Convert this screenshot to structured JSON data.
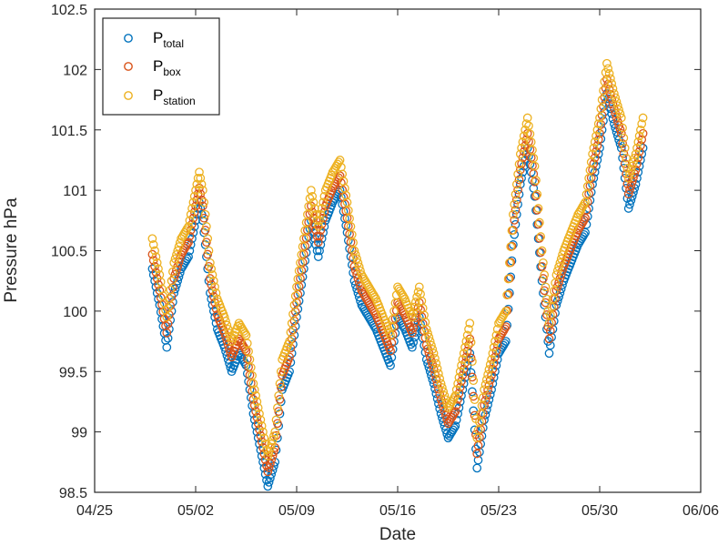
{
  "chart_data": {
    "type": "scatter",
    "title": "",
    "xlabel": "Date",
    "ylabel": "Pressure hPa",
    "x_range": [
      "04/25",
      "06/06"
    ],
    "ylim": [
      98.5,
      102.5
    ],
    "x_ticks": [
      "04/25",
      "05/02",
      "05/09",
      "05/16",
      "05/23",
      "05/30",
      "06/06"
    ],
    "y_ticks": [
      "98.5",
      "99",
      "99.5",
      "100",
      "100.5",
      "101",
      "101.5",
      "102",
      "102.5"
    ],
    "grid": false,
    "legend_position": "top-left",
    "marker": "open-circle",
    "base_series": {
      "name": "P_station",
      "points": [
        [
          "04/29 00:00",
          100.6
        ],
        [
          "04/29 12:00",
          100.3
        ],
        [
          "04/30 00:00",
          99.95
        ],
        [
          "04/30 12:00",
          100.4
        ],
        [
          "05/01 00:00",
          100.6
        ],
        [
          "05/01 12:00",
          100.7
        ],
        [
          "05/02 00:00",
          101.0
        ],
        [
          "05/02 06:00",
          101.15
        ],
        [
          "05/02 12:00",
          101.0
        ],
        [
          "05/03 00:00",
          100.4
        ],
        [
          "05/03 12:00",
          100.1
        ],
        [
          "05/04 00:00",
          99.95
        ],
        [
          "05/04 12:00",
          99.75
        ],
        [
          "05/05 00:00",
          99.9
        ],
        [
          "05/05 12:00",
          99.8
        ],
        [
          "05/06 00:00",
          99.4
        ],
        [
          "05/06 12:00",
          99.1
        ],
        [
          "05/07 00:00",
          98.8
        ],
        [
          "05/07 12:00",
          99.0
        ],
        [
          "05/08 00:00",
          99.6
        ],
        [
          "05/08 12:00",
          99.75
        ],
        [
          "05/09 00:00",
          100.2
        ],
        [
          "05/09 12:00",
          100.6
        ],
        [
          "05/10 00:00",
          101.0
        ],
        [
          "05/10 12:00",
          100.7
        ],
        [
          "05/11 00:00",
          101.0
        ],
        [
          "05/11 12:00",
          101.15
        ],
        [
          "05/12 00:00",
          101.25
        ],
        [
          "05/12 12:00",
          100.9
        ],
        [
          "05/13 00:00",
          100.5
        ],
        [
          "05/13 12:00",
          100.3
        ],
        [
          "05/14 00:00",
          100.2
        ],
        [
          "05/14 12:00",
          100.1
        ],
        [
          "05/15 00:00",
          99.95
        ],
        [
          "05/15 12:00",
          99.8
        ],
        [
          "05/16 00:00",
          100.2
        ],
        [
          "05/16 12:00",
          100.1
        ],
        [
          "05/17 00:00",
          99.95
        ],
        [
          "05/17 12:00",
          100.2
        ],
        [
          "05/18 00:00",
          99.85
        ],
        [
          "05/18 12:00",
          99.65
        ],
        [
          "05/19 00:00",
          99.4
        ],
        [
          "05/19 12:00",
          99.2
        ],
        [
          "05/20 00:00",
          99.3
        ],
        [
          "05/20 12:00",
          99.6
        ],
        [
          "05/21 00:00",
          99.9
        ],
        [
          "05/21 12:00",
          98.95
        ],
        [
          "05/22 00:00",
          99.35
        ],
        [
          "05/22 12:00",
          99.6
        ],
        [
          "05/23 00:00",
          99.9
        ],
        [
          "05/23 12:00",
          100.0
        ],
        [
          "05/24 00:00",
          100.8
        ],
        [
          "05/24 12:00",
          101.3
        ],
        [
          "05/25 00:00",
          101.6
        ],
        [
          "05/25 12:00",
          101.2
        ],
        [
          "05/26 00:00",
          100.5
        ],
        [
          "05/26 12:00",
          99.9
        ],
        [
          "05/27 00:00",
          100.3
        ],
        [
          "05/27 12:00",
          100.5
        ],
        [
          "05/28 00:00",
          100.65
        ],
        [
          "05/28 12:00",
          100.8
        ],
        [
          "05/29 00:00",
          100.9
        ],
        [
          "05/29 12:00",
          101.3
        ],
        [
          "05/30 00:00",
          101.6
        ],
        [
          "05/30 12:00",
          102.05
        ],
        [
          "05/31 00:00",
          101.8
        ],
        [
          "05/31 12:00",
          101.6
        ],
        [
          "06/01 00:00",
          101.1
        ],
        [
          "06/01 12:00",
          101.3
        ],
        [
          "06/02 00:00",
          101.6
        ]
      ]
    },
    "series": [
      {
        "name": "P_total",
        "color": "#0072BD",
        "offset": -0.25
      },
      {
        "name": "P_box",
        "color": "#D95319",
        "offset": -0.13
      },
      {
        "name": "P_station",
        "color": "#EDB120",
        "offset": 0
      }
    ]
  },
  "legend": {
    "items": [
      {
        "main": "P",
        "sub": "total",
        "color": "#0072BD"
      },
      {
        "main": "P",
        "sub": "box",
        "color": "#D95319"
      },
      {
        "main": "P",
        "sub": "station",
        "color": "#EDB120"
      }
    ]
  }
}
